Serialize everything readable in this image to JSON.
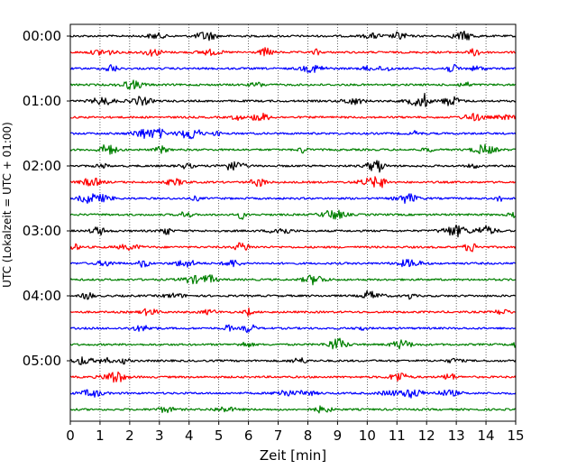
{
  "chart_data": {
    "type": "line",
    "subtype": "helicorder",
    "xlabel": "Zeit  [min]",
    "ylabel": "UTC (Lokalzeit = UTC + 01:00)",
    "xlim": [
      0,
      15
    ],
    "x_ticks": [
      "0",
      "1",
      "2",
      "3",
      "4",
      "5",
      "6",
      "7",
      "8",
      "9",
      "10",
      "11",
      "12",
      "13",
      "14",
      "15"
    ],
    "y_ticks": [
      "00:00",
      "01:00",
      "02:00",
      "03:00",
      "04:00",
      "05:00"
    ],
    "grid": "vertical dotted at each minute",
    "trace_count": 24,
    "trace_interval_minutes": 15,
    "trace_colors": [
      "#000000",
      "#ff0000",
      "#0000ff",
      "#008000"
    ],
    "trace_color_names": [
      "black",
      "red",
      "blue",
      "green"
    ],
    "first_trace_start": "00:00",
    "last_trace_start": "05:45"
  }
}
